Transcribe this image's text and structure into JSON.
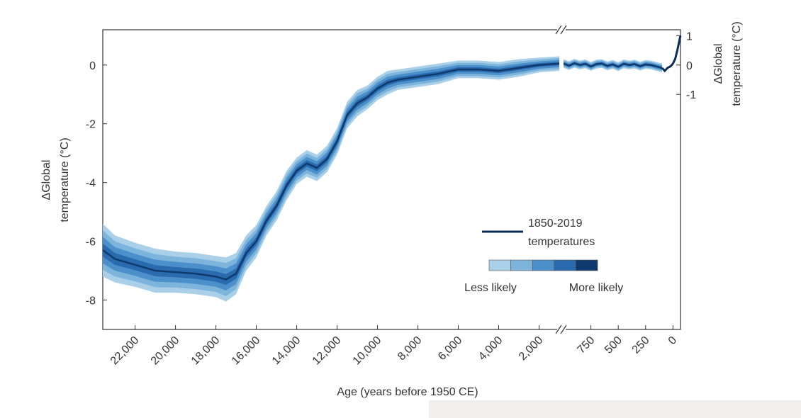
{
  "chart_data": [
    {
      "type": "band-line",
      "ylabel": [
        "ΔGlobal",
        "temperature (°C)"
      ],
      "xlabel": "Age (years before 1950 CE)",
      "xlim": [
        23600,
        1000
      ],
      "ylim": [
        -9,
        1.2
      ],
      "xticks": [
        {
          "value": 22000,
          "label": "22,000"
        },
        {
          "value": 20000,
          "label": "20,000"
        },
        {
          "value": 18000,
          "label": "18,000"
        },
        {
          "value": 16000,
          "label": "16,000"
        },
        {
          "value": 14000,
          "label": "14,000"
        },
        {
          "value": 12000,
          "label": "12,000"
        },
        {
          "value": 10000,
          "label": "10,000"
        },
        {
          "value": 8000,
          "label": "8,000"
        },
        {
          "value": 6000,
          "label": "6,000"
        },
        {
          "value": 4000,
          "label": "4,000"
        },
        {
          "value": 2000,
          "label": "2,000"
        }
      ],
      "yticks": [
        -8,
        -6,
        -4,
        -2,
        0
      ],
      "x": [
        23600,
        23000,
        22000,
        21000,
        20000,
        19000,
        18000,
        17500,
        17000,
        16500,
        16000,
        15500,
        15000,
        14500,
        14000,
        13500,
        13000,
        12500,
        12000,
        11500,
        11000,
        10500,
        10000,
        9500,
        9000,
        8000,
        7000,
        6000,
        5000,
        4000,
        3000,
        2000,
        1000
      ],
      "values": [
        -6.3,
        -6.6,
        -6.8,
        -7.0,
        -7.05,
        -7.1,
        -7.2,
        -7.3,
        -7.1,
        -6.4,
        -6.0,
        -5.3,
        -4.8,
        -4.1,
        -3.6,
        -3.35,
        -3.5,
        -3.2,
        -2.6,
        -1.7,
        -1.3,
        -1.1,
        -0.8,
        -0.6,
        -0.5,
        -0.4,
        -0.3,
        -0.15,
        -0.15,
        -0.2,
        -0.1,
        0.0,
        0.05
      ],
      "spread": [
        0.9,
        0.8,
        0.75,
        0.75,
        0.7,
        0.7,
        0.7,
        0.75,
        0.7,
        0.6,
        0.55,
        0.5,
        0.5,
        0.5,
        0.45,
        0.45,
        0.45,
        0.45,
        0.45,
        0.45,
        0.45,
        0.4,
        0.4,
        0.4,
        0.35,
        0.35,
        0.35,
        0.3,
        0.3,
        0.3,
        0.3,
        0.25,
        0.25
      ],
      "band_legend": {
        "colors": [
          "#a9d0e8",
          "#7db4dc",
          "#4b90cb",
          "#2a6aae",
          "#0f3a6e"
        ],
        "labels": [
          "Less likely",
          "More likely"
        ]
      }
    },
    {
      "type": "band-line",
      "y2label": [
        "ΔGlobal",
        "temperature (°C)"
      ],
      "xlim": [
        1000,
        -69
      ],
      "y2lim": [
        -9,
        1.2
      ],
      "xticks": [
        750,
        500,
        250,
        0
      ],
      "y2ticks": [
        -1,
        0,
        1
      ],
      "series": [
        {
          "axis": "y2",
          "x": [
            1000,
            950,
            900,
            850,
            800,
            750,
            700,
            650,
            600,
            550,
            500,
            450,
            400,
            350,
            300,
            250,
            200,
            150,
            100
          ],
          "values": [
            0.05,
            -0.02,
            0.06,
            0.0,
            0.04,
            -0.05,
            0.03,
            0.05,
            -0.03,
            0.02,
            -0.06,
            0.04,
            0.0,
            0.03,
            -0.04,
            0.02,
            0.0,
            -0.05,
            -0.1
          ],
          "spread": [
            0.15,
            0.15,
            0.15,
            0.15,
            0.15,
            0.15,
            0.15,
            0.15,
            0.15,
            0.15,
            0.15,
            0.15,
            0.15,
            0.15,
            0.15,
            0.15,
            0.15,
            0.15,
            0.15
          ]
        },
        {
          "name": "1850-2019 temperatures",
          "color": "#0b2d5b",
          "axis": "y2",
          "x": [
            100,
            75,
            50,
            25,
            10,
            0,
            -20,
            -40,
            -60,
            -69
          ],
          "values": [
            -0.1,
            -0.2,
            -0.1,
            -0.05,
            0.0,
            0.05,
            0.2,
            0.5,
            0.85,
            1.0
          ]
        }
      ]
    }
  ]
}
